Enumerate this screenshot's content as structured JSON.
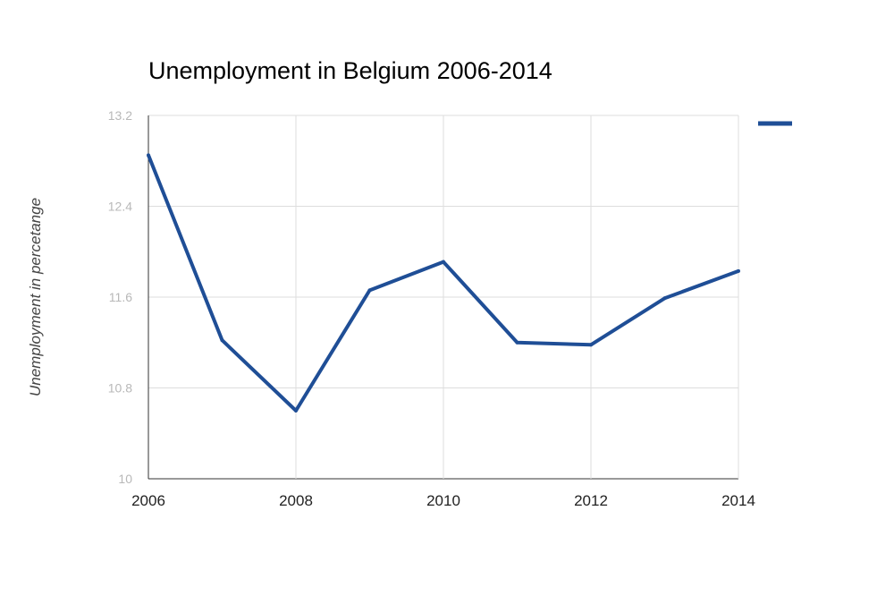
{
  "chart_data": {
    "type": "line",
    "title": "Unemployment in Belgium 2006-2014",
    "xlabel": "",
    "ylabel": "Unemployment in percetange",
    "x": [
      2006,
      2007,
      2008,
      2009,
      2010,
      2011,
      2012,
      2013,
      2014
    ],
    "x_ticks": [
      "2006",
      "2008",
      "2010",
      "2012",
      "2014"
    ],
    "y_ticks": [
      "13.2",
      "12.4",
      "11.6",
      "10.8",
      "10"
    ],
    "ylim": [
      10,
      13.2
    ],
    "xlim": [
      2006,
      2014
    ],
    "grid": true,
    "legend": "right",
    "series": [
      {
        "name": "",
        "color": "#1f4e96",
        "values": [
          12.85,
          11.22,
          10.6,
          11.66,
          11.91,
          11.2,
          11.18,
          11.59,
          11.83
        ]
      }
    ]
  }
}
